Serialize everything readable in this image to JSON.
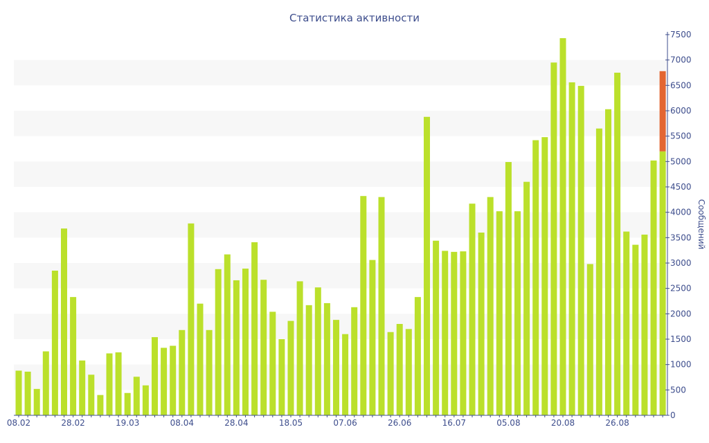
{
  "chart_data": {
    "type": "bar",
    "title": "Статистика активности",
    "ylabel": "Сообщений",
    "xlabel": "",
    "ylim": [
      0,
      7500
    ],
    "yticks": [
      0,
      500,
      1000,
      1500,
      2000,
      2500,
      3000,
      3500,
      4000,
      4500,
      5000,
      5500,
      6000,
      6500,
      7000,
      7500
    ],
    "y_axis_side": "right",
    "grid": "alternating horizontal bands",
    "colors": {
      "bar": "#bbe02b",
      "highlight": "#e36632",
      "text": "#3d4d8c",
      "band": "#f7f7f7"
    },
    "xtick_labels": [
      {
        "index": 0,
        "label": "08.02"
      },
      {
        "index": 6,
        "label": "28.02"
      },
      {
        "index": 12,
        "label": "19.03"
      },
      {
        "index": 18,
        "label": "08.04"
      },
      {
        "index": 24,
        "label": "28.04"
      },
      {
        "index": 30,
        "label": "18.05"
      },
      {
        "index": 36,
        "label": "07.06"
      },
      {
        "index": 42,
        "label": "26.06"
      },
      {
        "index": 48,
        "label": "16.07"
      },
      {
        "index": 54,
        "label": "05.08"
      },
      {
        "index": 60,
        "label": "20.08"
      },
      {
        "index": 66,
        "label": "26.08"
      }
    ],
    "values": [
      880,
      860,
      520,
      1260,
      2850,
      3680,
      2330,
      1080,
      800,
      400,
      1220,
      1240,
      440,
      760,
      590,
      1540,
      1330,
      1370,
      1680,
      3780,
      2200,
      1680,
      2880,
      3170,
      2660,
      2890,
      3410,
      2670,
      2040,
      1500,
      1860,
      2640,
      2170,
      2520,
      2210,
      1880,
      1600,
      2130,
      4320,
      3060,
      4300,
      1640,
      1800,
      1700,
      2330,
      5880,
      3440,
      3240,
      3220,
      3230,
      4170,
      3600,
      4300,
      4020,
      4990,
      4020,
      4600,
      5420,
      5480,
      6950,
      7430,
      6560,
      6490,
      2980,
      5650,
      6030,
      6750,
      3620,
      3360,
      3560,
      5020,
      5200
    ],
    "highlight": {
      "index": 71,
      "base": 5200,
      "top": 6780
    }
  }
}
